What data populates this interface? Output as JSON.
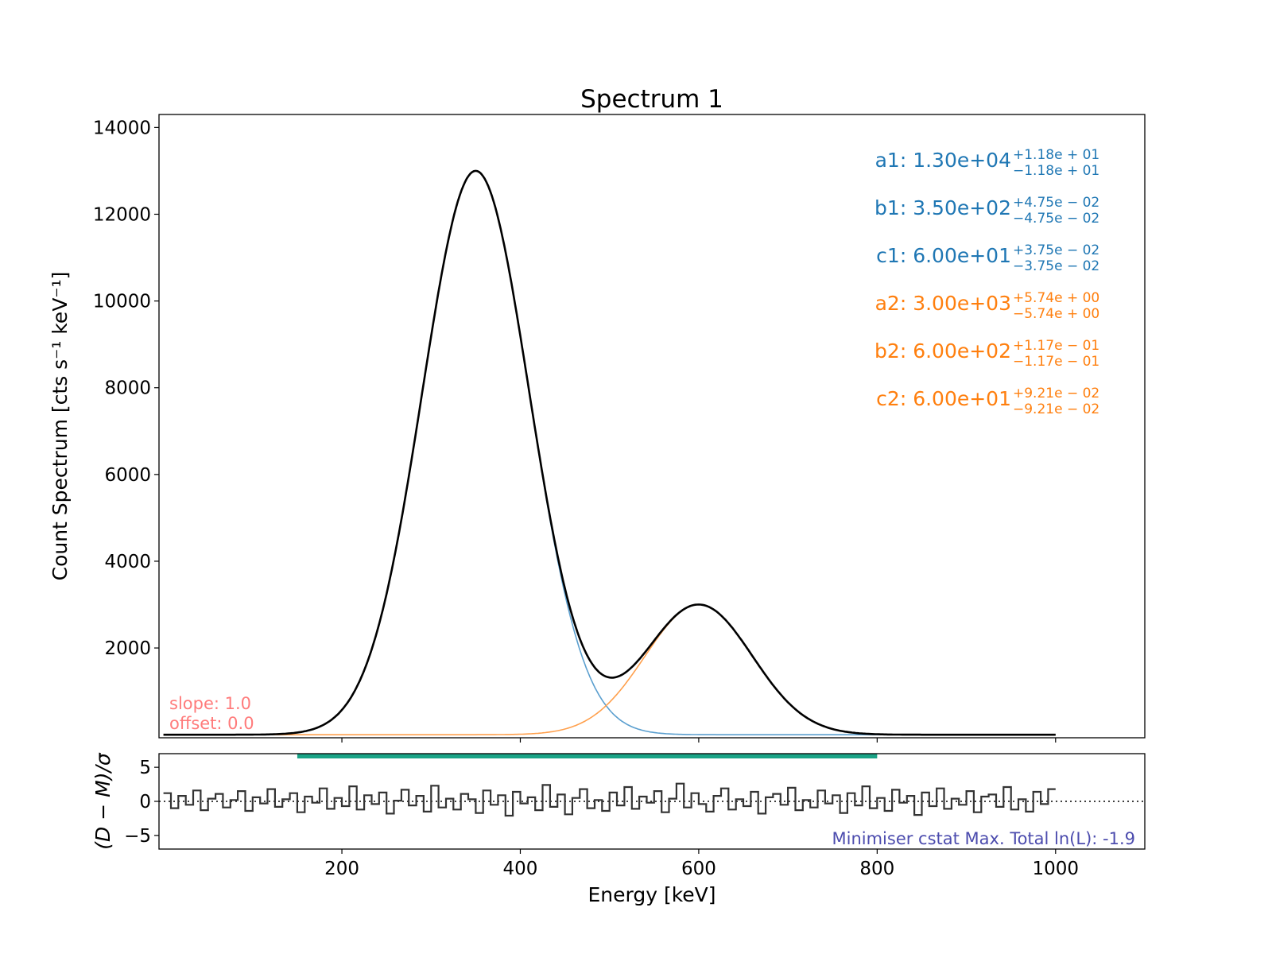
{
  "chart_data": [
    {
      "type": "line",
      "title": "Spectrum 1",
      "xlabel": "",
      "ylabel": "Count Spectrum [cts s⁻¹ keV⁻¹]",
      "xlim": [
        -5,
        1100
      ],
      "ylim": [
        -70,
        14300
      ],
      "x_ticks": [
        200,
        400,
        600,
        800,
        1000
      ],
      "y_ticks": [
        2000,
        4000,
        6000,
        8000,
        10000,
        12000,
        14000
      ],
      "y_tick_labels": [
        "2000",
        "4000",
        "6000",
        "8000",
        "10000",
        "12000",
        "14000"
      ],
      "x_range": [
        0,
        1000
      ],
      "grid": false,
      "colors": {
        "component1": "#5b9fcf",
        "component2": "#ffa04d",
        "total": "#000000",
        "param1": "#1f77b4",
        "param2": "#ff7f0e",
        "info": "#ff7b7b"
      },
      "components": [
        {
          "a": 13000,
          "b": 350,
          "c": 60
        },
        {
          "a": 3000,
          "b": 600,
          "c": 60
        }
      ],
      "params": [
        {
          "label": "a1: 1.30e+04",
          "plus": "+1.18e + 01",
          "minus": "−1.18e + 01",
          "group": 1
        },
        {
          "label": "b1: 3.50e+02",
          "plus": "+4.75e − 02",
          "minus": "−4.75e − 02",
          "group": 1
        },
        {
          "label": "c1: 6.00e+01",
          "plus": "+3.75e − 02",
          "minus": "−3.75e − 02",
          "group": 1
        },
        {
          "label": "a2: 3.00e+03",
          "plus": "+5.74e + 00",
          "minus": "−5.74e + 00",
          "group": 2
        },
        {
          "label": "b2: 6.00e+02",
          "plus": "+1.17e − 01",
          "minus": "−1.17e − 01",
          "group": 2
        },
        {
          "label": "c2: 6.00e+01",
          "plus": "+9.21e − 02",
          "minus": "−9.21e − 02",
          "group": 2
        }
      ],
      "annotations": {
        "slope": "slope: 1.0",
        "offset": "offset: 0.0"
      }
    },
    {
      "type": "line",
      "title": "",
      "xlabel": "Energy [keV]",
      "ylabel": "(D − M)/σ",
      "xlim": [
        -5,
        1100
      ],
      "ylim": [
        -7,
        7
      ],
      "x_ticks": [
        200,
        400,
        600,
        800,
        1000
      ],
      "x_tick_labels": [
        "200",
        "400",
        "600",
        "800",
        "1000"
      ],
      "y_ticks": [
        5,
        0,
        -5
      ],
      "y_tick_labels": [
        "5",
        "0",
        "−5"
      ],
      "x_range": [
        0,
        1000
      ],
      "fit_range": [
        150,
        800
      ],
      "colors": {
        "residual": "#333333",
        "fit_range": "#1aa386",
        "statistic": "#4c4cae"
      },
      "residuals": [
        1.2,
        -1.0,
        0.8,
        -0.5,
        1.6,
        -1.3,
        0.4,
        1.1,
        -0.9,
        0.2,
        1.5,
        -1.4,
        0.6,
        -0.3,
        1.8,
        -0.8,
        0.3,
        1.2,
        -1.6,
        0.7,
        -0.2,
        1.9,
        -1.1,
        0.5,
        -0.7,
        2.2,
        -1.2,
        0.9,
        -0.4,
        1.3,
        -1.8,
        0.1,
        1.7,
        -0.6,
        0.8,
        -1.5,
        2.3,
        -0.9,
        0.4,
        -1.2,
        1.1,
        0.3,
        -1.7,
        1.6,
        -0.5,
        0.9,
        -2.1,
        1.4,
        -0.3,
        0.6,
        -1.3,
        2.4,
        -0.8,
        1.0,
        -1.9,
        0.5,
        1.8,
        -1.0,
        0.2,
        -1.4,
        1.3,
        -0.6,
        2.1,
        -1.1,
        0.7,
        -0.2,
        1.5,
        -1.6,
        0.4,
        2.6,
        -0.9,
        1.2,
        -0.4,
        -1.5,
        0.8,
        1.9,
        -1.2,
        0.3,
        -0.7,
        1.4,
        -1.8,
        0.6,
        1.1,
        -0.5,
        2.0,
        -1.3,
        0.2,
        -0.9,
        1.6,
        -0.3,
        0.9,
        -1.7,
        1.2,
        -0.6,
        2.2,
        -1.0,
        0.5,
        -1.4,
        1.7,
        -0.2,
        0.8,
        -2.0,
        1.3,
        -0.7,
        1.9,
        -1.1,
        0.4,
        -0.5,
        1.5,
        -1.6,
        0.7,
        1.0,
        -0.8,
        2.1,
        -1.2,
        0.3,
        -1.5,
        1.4,
        -0.4,
        1.8
      ],
      "statistic": "Minimiser cstat Max. Total ln(L): -1.9"
    }
  ]
}
